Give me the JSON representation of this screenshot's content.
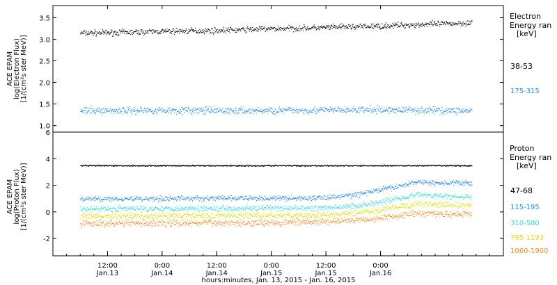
{
  "chart_data": [
    {
      "type": "scatter",
      "ylabel_lines": [
        "ACE EPAM",
        "log(Electron Flux)",
        "[1/(cm²s ster MeV)]"
      ],
      "ylim": [
        0.85,
        3.78
      ],
      "yticks": [
        "1.0",
        "1.5",
        "2.0",
        "2.5",
        "3.0",
        "3.5"
      ],
      "ytick_values": [
        1.0,
        1.5,
        2.0,
        2.5,
        3.0,
        3.5
      ],
      "legend_title": [
        "Electron",
        "Energy ran",
        "[keV]"
      ],
      "series": [
        {
          "name": "38-53",
          "color": "#000000",
          "x_hours": [
            0,
            6,
            12,
            18,
            24,
            30,
            36,
            42,
            48,
            54,
            60,
            66,
            72,
            78,
            84,
            86
          ],
          "values": [
            3.15,
            3.16,
            3.17,
            3.19,
            3.2,
            3.21,
            3.23,
            3.25,
            3.26,
            3.28,
            3.3,
            3.31,
            3.34,
            3.36,
            3.38,
            3.4
          ]
        },
        {
          "name": "175-315",
          "color": "#1f8ae0",
          "x_hours": [
            0,
            12,
            24,
            36,
            48,
            60,
            72,
            86
          ],
          "values": [
            1.35,
            1.36,
            1.36,
            1.35,
            1.36,
            1.37,
            1.37,
            1.35
          ]
        }
      ]
    },
    {
      "type": "scatter",
      "ylabel_lines": [
        "ACE EPAM",
        "log(Proton Flux)",
        "[1/(cm²s ster MeV)]"
      ],
      "ylim": [
        -3.3,
        6.0
      ],
      "yticks": [
        "-2",
        "0",
        "2",
        "4",
        "6"
      ],
      "ytick_values": [
        -2,
        0,
        2,
        4,
        6
      ],
      "legend_title": [
        "Proton",
        "Energy ran",
        "[keV]"
      ],
      "series": [
        {
          "name": "47-68",
          "color": "#000000",
          "x_hours": [
            0,
            24,
            48,
            72,
            86
          ],
          "values": [
            3.5,
            3.5,
            3.5,
            3.5,
            3.5
          ]
        },
        {
          "name": "115-195",
          "color": "#1f8ae0",
          "x_hours": [
            0,
            30,
            50,
            56,
            62,
            66,
            70,
            74,
            79,
            86
          ],
          "values": [
            1.0,
            1.05,
            1.05,
            1.15,
            1.4,
            1.7,
            1.95,
            2.3,
            2.2,
            2.2
          ]
        },
        {
          "name": "310-580",
          "color": "#2ee0d4",
          "x_hours": [
            0,
            30,
            50,
            56,
            62,
            66,
            70,
            74,
            79,
            86
          ],
          "values": [
            0.25,
            0.3,
            0.3,
            0.35,
            0.55,
            0.8,
            1.05,
            1.35,
            1.2,
            1.15
          ]
        },
        {
          "name": "795-1193",
          "color": "#dede00",
          "x_hours": [
            0,
            30,
            50,
            56,
            62,
            66,
            70,
            74,
            79,
            86
          ],
          "values": [
            -0.3,
            -0.25,
            -0.25,
            -0.2,
            0.0,
            0.2,
            0.4,
            0.65,
            0.55,
            0.5
          ]
        },
        {
          "name": "1060-1900",
          "color": "#f28a1c",
          "x_hours": [
            0,
            30,
            50,
            56,
            62,
            66,
            70,
            74,
            79,
            86
          ],
          "values": [
            -0.85,
            -0.8,
            -0.75,
            -0.7,
            -0.55,
            -0.4,
            -0.25,
            -0.05,
            -0.15,
            -0.15
          ]
        }
      ]
    }
  ],
  "x_axis": {
    "range_hours": [
      -6,
      93
    ],
    "ticks": [
      {
        "hours": 6,
        "top": "12:00",
        "bottom": "Jan.13"
      },
      {
        "hours": 18,
        "top": "0:00",
        "bottom": "Jan.14"
      },
      {
        "hours": 30,
        "top": "12:00",
        "bottom": "Jan.14"
      },
      {
        "hours": 42,
        "top": "0:00",
        "bottom": "Jan.15"
      },
      {
        "hours": 54,
        "top": "12:00",
        "bottom": "Jan.15"
      },
      {
        "hours": 66,
        "top": "0:00",
        "bottom": "Jan.16"
      }
    ],
    "label": "hours:minutes, Jan. 13, 2015 - Jan. 16, 2015"
  }
}
